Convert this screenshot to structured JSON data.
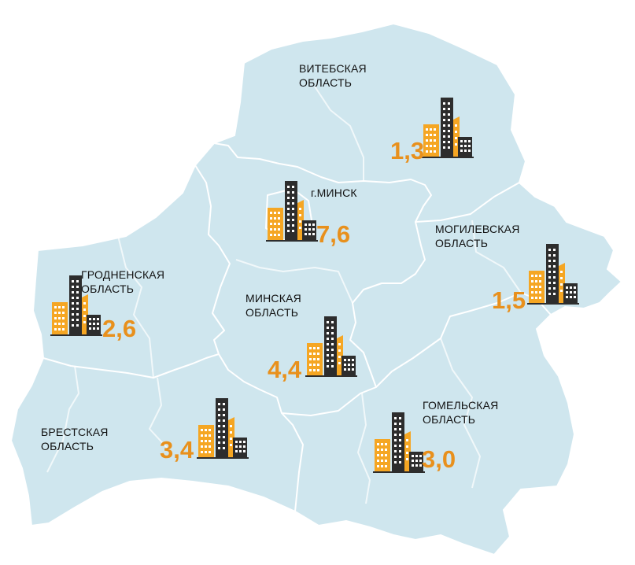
{
  "colors": {
    "land": "#cfe6ee",
    "border": "#ffffff",
    "value": "#e8901c",
    "building_orange": "#f5a623",
    "building_dark": "#2d2d2d"
  },
  "icon": "city-buildings-icon",
  "regions": [
    {
      "id": "vitebsk",
      "name_lines": [
        "ВИТЕБСКАЯ",
        "ОБЛАСТЬ"
      ],
      "value": "1,3"
    },
    {
      "id": "minsk-city",
      "name_lines": [
        "г.МИНСК"
      ],
      "value": "7,6"
    },
    {
      "id": "mogilev",
      "name_lines": [
        "МОГИЛЕВСКАЯ",
        "ОБЛАСТЬ"
      ],
      "value": "1,5"
    },
    {
      "id": "grodno",
      "name_lines": [
        "ГРОДНЕНСКАЯ",
        "ОБЛАСТЬ"
      ],
      "value": "2,6"
    },
    {
      "id": "minsk-region",
      "name_lines": [
        "МИНСКАЯ",
        "ОБЛАСТЬ"
      ],
      "value": "4,4"
    },
    {
      "id": "brest",
      "name_lines": [
        "БРЕСТСКАЯ",
        "ОБЛАСТЬ"
      ],
      "value": "3,4"
    },
    {
      "id": "gomel",
      "name_lines": [
        "ГОМЕЛЬСКАЯ",
        "ОБЛАСТЬ"
      ],
      "value": "3,0"
    }
  ]
}
